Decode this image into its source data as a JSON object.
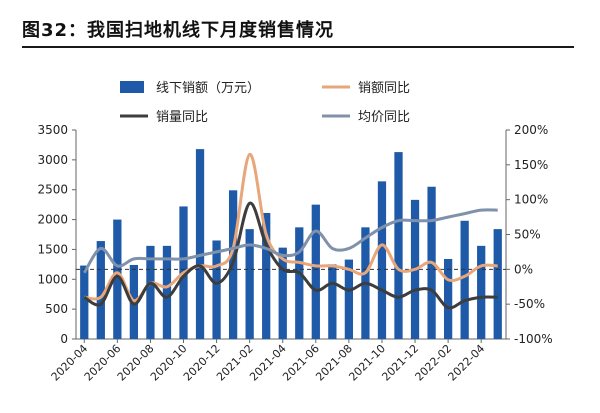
{
  "figure": {
    "title": "图32：我国扫地机线下月度销售情况"
  },
  "chart_data": {
    "type": "bar+line",
    "x": [
      "2020-04",
      "2020-05",
      "2020-06",
      "2020-07",
      "2020-08",
      "2020-09",
      "2020-10",
      "2020-11",
      "2020-12",
      "2021-01",
      "2021-02",
      "2021-03",
      "2021-04",
      "2021-05",
      "2021-06",
      "2021-07",
      "2021-08",
      "2021-09",
      "2021-10",
      "2021-11",
      "2021-12",
      "2022-01",
      "2022-02",
      "2022-03",
      "2022-04",
      "2022-05"
    ],
    "x_tick_labels": [
      "2020-04",
      "2020-06",
      "2020-08",
      "2020-10",
      "2020-12",
      "2021-02",
      "2021-04",
      "2021-06",
      "2021-08",
      "2021-10",
      "2021-12",
      "2022-02",
      "2022-04"
    ],
    "y_left": {
      "ticks": [
        "0",
        "500",
        "1000",
        "1500",
        "2000",
        "2500",
        "3000",
        "3500"
      ],
      "ylim": [
        0,
        3500
      ]
    },
    "y_right": {
      "ticks": [
        "-100%",
        "-50%",
        "0%",
        "50%",
        "100%",
        "150%",
        "200%"
      ],
      "ylim": [
        -100,
        200
      ]
    },
    "legend": {
      "placement": "top",
      "entries": [
        "线下销额（万元）",
        "销额同比",
        "销量同比",
        "均价同比"
      ]
    },
    "series": [
      {
        "name": "线下销额（万元）",
        "kind": "bar",
        "axis": "left",
        "color": "#1f5aa8",
        "values": [
          1230,
          1640,
          2000,
          1240,
          1560,
          1560,
          2220,
          3180,
          1650,
          2490,
          1840,
          2110,
          1530,
          1870,
          2250,
          1250,
          1330,
          1870,
          2640,
          3130,
          2330,
          2550,
          1340,
          1980,
          1560,
          1840
        ]
      },
      {
        "name": "销额同比",
        "kind": "line",
        "axis": "right",
        "color": "#e8a77a",
        "values": [
          -40,
          -40,
          -5,
          -45,
          -20,
          -25,
          -5,
          5,
          5,
          30,
          165,
          50,
          15,
          10,
          5,
          5,
          0,
          -5,
          35,
          0,
          0,
          10,
          -15,
          -10,
          5,
          5
        ]
      },
      {
        "name": "销量同比",
        "kind": "line",
        "axis": "right",
        "color": "#3d3d3d",
        "values": [
          -40,
          -50,
          -10,
          -50,
          -20,
          -40,
          -10,
          5,
          -20,
          10,
          95,
          35,
          0,
          -5,
          -30,
          -20,
          -30,
          -20,
          -30,
          -40,
          -30,
          -30,
          -55,
          -45,
          -40,
          -40
        ]
      },
      {
        "name": "均价同比",
        "kind": "line",
        "axis": "right",
        "color": "#7f91ab",
        "values": [
          -5,
          30,
          5,
          15,
          15,
          15,
          15,
          20,
          25,
          30,
          35,
          30,
          20,
          25,
          55,
          30,
          30,
          45,
          60,
          70,
          70,
          70,
          75,
          80,
          85,
          85
        ]
      }
    ],
    "reference_line": {
      "axis": "right",
      "value": 0,
      "style": "dashed"
    },
    "grid": false
  }
}
